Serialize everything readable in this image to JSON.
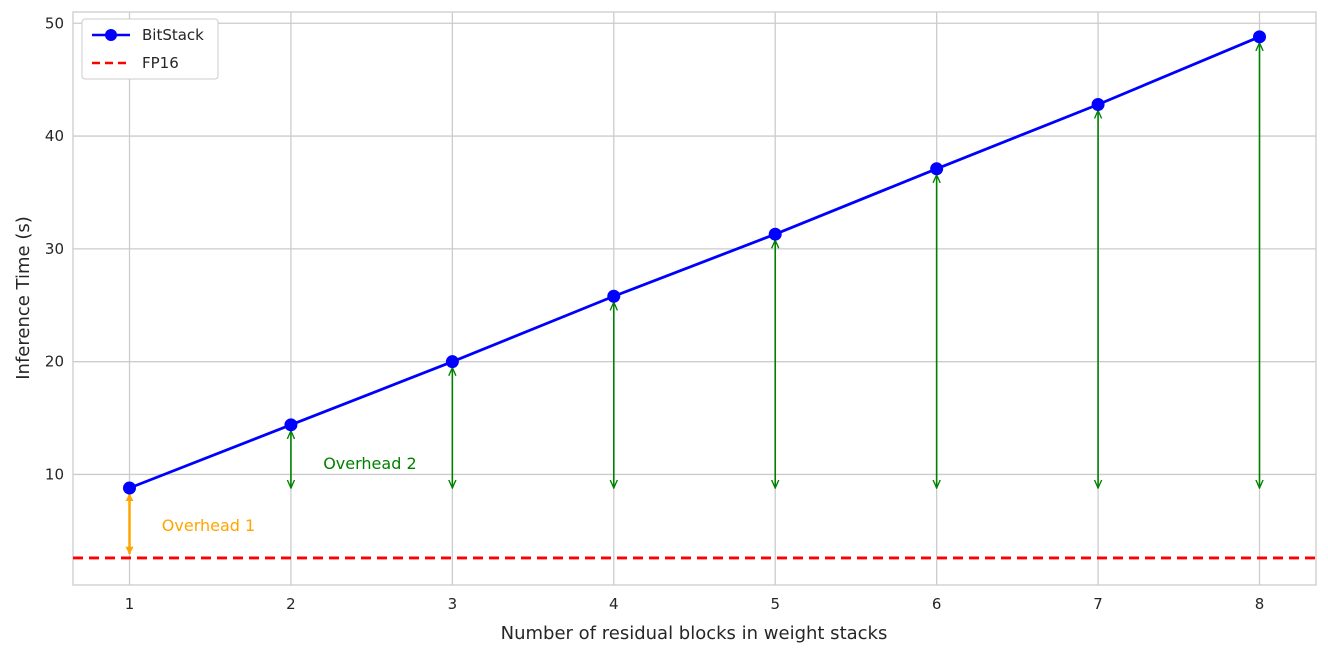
{
  "chart_data": {
    "type": "line",
    "title": "",
    "xlabel": "Number of residual blocks in weight stacks",
    "ylabel": "Inference Time (s)",
    "x": [
      1,
      2,
      3,
      4,
      5,
      6,
      7,
      8
    ],
    "xlim": [
      0.65,
      8.35
    ],
    "ylim": [
      0.2,
      51.0
    ],
    "xticks": [
      1,
      2,
      3,
      4,
      5,
      6,
      7,
      8
    ],
    "yticks": [
      10,
      20,
      30,
      40,
      50
    ],
    "grid": true,
    "legend_position": "top-left",
    "series": [
      {
        "name": "BitStack",
        "values": [
          8.8,
          14.4,
          20.0,
          25.8,
          31.3,
          37.1,
          42.8,
          48.8
        ],
        "color": "#0000ff",
        "style": "solid",
        "marker": "circle"
      },
      {
        "name": "FP16",
        "constant": 2.6,
        "color": "#ff0000",
        "style": "dashed"
      }
    ],
    "annotations": [
      {
        "label": "Overhead 1",
        "color": "#ffa500",
        "arrows": [
          {
            "x": 1,
            "from": 2.6,
            "to": 8.8
          }
        ],
        "text_at": {
          "x": 1.2,
          "y": 5.5
        }
      },
      {
        "label": "Overhead 2",
        "color": "#008000",
        "base": 8.8,
        "arrows": [
          {
            "x": 2,
            "to": 14.4
          },
          {
            "x": 3,
            "to": 20.0
          },
          {
            "x": 4,
            "to": 25.8
          },
          {
            "x": 5,
            "to": 31.3
          },
          {
            "x": 6,
            "to": 37.1
          },
          {
            "x": 7,
            "to": 42.8
          },
          {
            "x": 8,
            "to": 48.8
          }
        ],
        "text_at": {
          "x": 2.2,
          "y": 11.0
        }
      }
    ]
  }
}
